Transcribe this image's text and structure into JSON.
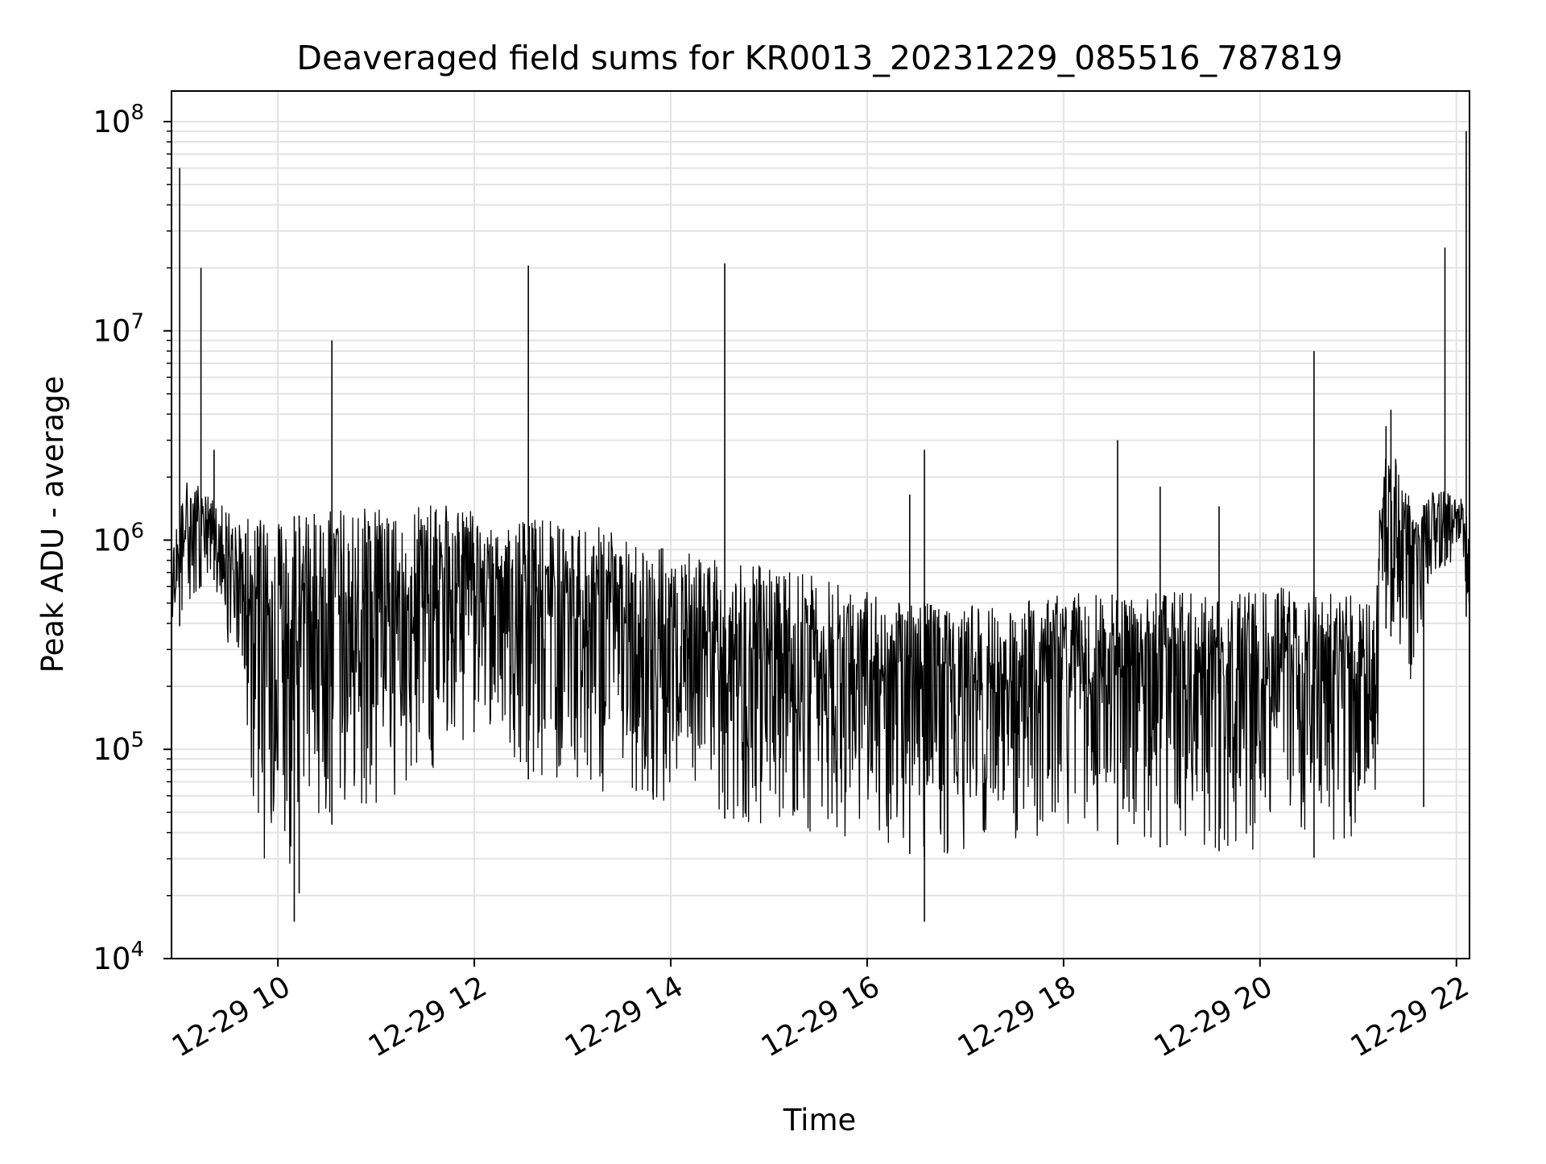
{
  "chart_data": {
    "type": "line",
    "title": "Deaveraged field sums for KR0013_20231229_085516_787819",
    "xlabel": "Time",
    "ylabel": "Peak ADU - average",
    "yscale": "log",
    "ylim": [
      10000,
      140000000
    ],
    "xlim": [
      "2023-12-29 08:55",
      "2023-12-29 22:08"
    ],
    "xticks": [
      {
        "time": "2023-12-29 10:00",
        "label": "12-29 10"
      },
      {
        "time": "2023-12-29 12:00",
        "label": "12-29 12"
      },
      {
        "time": "2023-12-29 14:00",
        "label": "12-29 14"
      },
      {
        "time": "2023-12-29 16:00",
        "label": "12-29 16"
      },
      {
        "time": "2023-12-29 18:00",
        "label": "12-29 18"
      },
      {
        "time": "2023-12-29 20:00",
        "label": "12-29 20"
      },
      {
        "time": "2023-12-29 22:00",
        "label": "12-29 22"
      }
    ],
    "yticks": [
      {
        "value": 10000,
        "base": "10",
        "exp": "4"
      },
      {
        "value": 100000,
        "base": "10",
        "exp": "5"
      },
      {
        "value": 1000000,
        "base": "10",
        "exp": "6"
      },
      {
        "value": 10000000,
        "base": "10",
        "exp": "7"
      },
      {
        "value": 100000000,
        "base": "10",
        "exp": "8"
      }
    ],
    "grid": true,
    "line_color": "#000000",
    "grid_color": "#e3e3e3",
    "envelope": [
      {
        "time": "2023-12-29 08:55",
        "upper": 900000,
        "lower": 300000
      },
      {
        "time": "2023-12-29 09:05",
        "upper": 2000000,
        "lower": 500000
      },
      {
        "time": "2023-12-29 09:20",
        "upper": 1600000,
        "lower": 700000
      },
      {
        "time": "2023-12-29 09:35",
        "upper": 1300000,
        "lower": 200000
      },
      {
        "time": "2023-12-29 09:50",
        "upper": 1300000,
        "lower": 30000
      },
      {
        "time": "2023-12-29 10:10",
        "upper": 1300000,
        "lower": 28000
      },
      {
        "time": "2023-12-29 10:40",
        "upper": 1400000,
        "lower": 50000
      },
      {
        "time": "2023-12-29 11:20",
        "upper": 1500000,
        "lower": 60000
      },
      {
        "time": "2023-12-29 11:40",
        "upper": 1500000,
        "lower": 90000
      },
      {
        "time": "2023-12-29 12:10",
        "upper": 1300000,
        "lower": 130000
      },
      {
        "time": "2023-12-29 12:40",
        "upper": 1250000,
        "lower": 60000
      },
      {
        "time": "2023-12-29 13:20",
        "upper": 1150000,
        "lower": 60000
      },
      {
        "time": "2023-12-29 14:00",
        "upper": 900000,
        "lower": 55000
      },
      {
        "time": "2023-12-29 14:40",
        "upper": 800000,
        "lower": 45000
      },
      {
        "time": "2023-12-29 15:20",
        "upper": 700000,
        "lower": 40000
      },
      {
        "time": "2023-12-29 16:00",
        "upper": 580000,
        "lower": 35000
      },
      {
        "time": "2023-12-29 16:40",
        "upper": 500000,
        "lower": 30000
      },
      {
        "time": "2023-12-29 17:20",
        "upper": 480000,
        "lower": 32000
      },
      {
        "time": "2023-12-29 18:00",
        "upper": 560000,
        "lower": 35000
      },
      {
        "time": "2023-12-29 18:40",
        "upper": 560000,
        "lower": 35000
      },
      {
        "time": "2023-12-29 19:20",
        "upper": 580000,
        "lower": 33000
      },
      {
        "time": "2023-12-29 20:00",
        "upper": 600000,
        "lower": 32000
      },
      {
        "time": "2023-12-29 20:40",
        "upper": 580000,
        "lower": 30000
      },
      {
        "time": "2023-12-29 21:10",
        "upper": 550000,
        "lower": 38000
      },
      {
        "time": "2023-12-29 21:15",
        "upper": 2500000,
        "lower": 400000
      },
      {
        "time": "2023-12-29 21:25",
        "upper": 2500000,
        "lower": 300000
      },
      {
        "time": "2023-12-29 21:35",
        "upper": 1200000,
        "lower": 180000
      },
      {
        "time": "2023-12-29 21:45",
        "upper": 1800000,
        "lower": 700000
      },
      {
        "time": "2023-12-29 22:00",
        "upper": 1700000,
        "lower": 800000
      },
      {
        "time": "2023-12-29 22:08",
        "upper": 1400000,
        "lower": 350000
      }
    ],
    "spikes": [
      {
        "time": "2023-12-29 09:00",
        "value": 60000000
      },
      {
        "time": "2023-12-29 09:13",
        "value": 20000000
      },
      {
        "time": "2023-12-29 09:21",
        "value": 2700000
      },
      {
        "time": "2023-12-29 10:33",
        "value": 9000000
      },
      {
        "time": "2023-12-29 12:33",
        "value": 20500000
      },
      {
        "time": "2023-12-29 14:33",
        "value": 21000000
      },
      {
        "time": "2023-12-29 16:26",
        "value": 1650000
      },
      {
        "time": "2023-12-29 16:35",
        "value": 2700000
      },
      {
        "time": "2023-12-29 18:33",
        "value": 3000000
      },
      {
        "time": "2023-12-29 18:59",
        "value": 1800000
      },
      {
        "time": "2023-12-29 19:35",
        "value": 1450000
      },
      {
        "time": "2023-12-29 20:33",
        "value": 8000000
      },
      {
        "time": "2023-12-29 21:17",
        "value": 3500000
      },
      {
        "time": "2023-12-29 21:20",
        "value": 4200000
      },
      {
        "time": "2023-12-29 21:53",
        "value": 25000000
      },
      {
        "time": "2023-12-29 22:06",
        "value": 90000000
      }
    ],
    "dips": [
      {
        "time": "2023-12-29 10:10",
        "value": 15000
      },
      {
        "time": "2023-12-29 10:13",
        "value": 20500
      },
      {
        "time": "2023-12-29 16:35",
        "value": 15000
      },
      {
        "time": "2023-12-29 21:40",
        "value": 53000
      }
    ]
  }
}
